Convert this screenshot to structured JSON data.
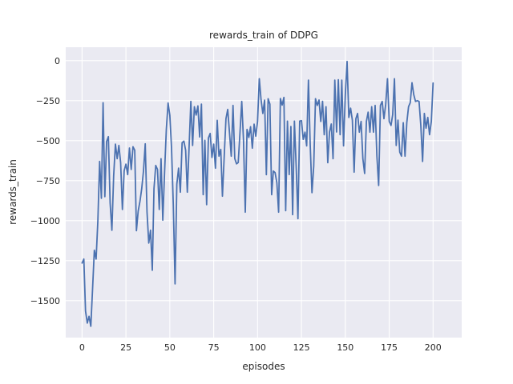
{
  "chart_data": {
    "type": "line",
    "title": "rewards_train of DDPG",
    "xlabel": "episodes",
    "ylabel": "rewards_train",
    "x_ticks": [
      0,
      25,
      50,
      75,
      100,
      125,
      150,
      175,
      200
    ],
    "y_ticks": [
      0,
      -250,
      -500,
      -750,
      -1000,
      -1250,
      -1500
    ],
    "xlim": [
      -9.3,
      216.3
    ],
    "ylim": [
      -1731,
      84
    ],
    "grid": true,
    "legend": "none",
    "style": {
      "axes_background": "#eaeaf2",
      "grid_color": "#ffffff",
      "line_color": "#4c72b0",
      "text_color": "#262626"
    },
    "series": [
      {
        "name": "rewards_train",
        "x_start": 0,
        "x_step": 1,
        "values": [
          -1265,
          -1240,
          -1565,
          -1640,
          -1598,
          -1660,
          -1425,
          -1185,
          -1240,
          -1000,
          -630,
          -860,
          -263,
          -850,
          -505,
          -475,
          -890,
          -1060,
          -720,
          -522,
          -613,
          -530,
          -638,
          -930,
          -688,
          -647,
          -712,
          -546,
          -680,
          -538,
          -560,
          -1063,
          -940,
          -880,
          -800,
          -690,
          -520,
          -945,
          -1140,
          -1060,
          -1310,
          -800,
          -655,
          -680,
          -930,
          -613,
          -997,
          -700,
          -430,
          -265,
          -343,
          -546,
          -900,
          -1395,
          -772,
          -672,
          -822,
          -513,
          -503,
          -560,
          -822,
          -540,
          -255,
          -530,
          -288,
          -340,
          -283,
          -477,
          -272,
          -838,
          -498,
          -900,
          -483,
          -455,
          -605,
          -522,
          -672,
          -373,
          -597,
          -555,
          -847,
          -600,
          -363,
          -305,
          -450,
          -597,
          -280,
          -612,
          -645,
          -637,
          -450,
          -255,
          -500,
          -947,
          -430,
          -480,
          -413,
          -547,
          -397,
          -472,
          -380,
          -113,
          -245,
          -330,
          -247,
          -713,
          -238,
          -272,
          -838,
          -690,
          -700,
          -763,
          -947,
          -237,
          -278,
          -230,
          -938,
          -378,
          -712,
          -412,
          -963,
          -378,
          -662,
          -988,
          -378,
          -375,
          -492,
          -447,
          -533,
          -122,
          -525,
          -825,
          -658,
          -238,
          -280,
          -246,
          -380,
          -254,
          -463,
          -288,
          -638,
          -446,
          -396,
          -613,
          -122,
          -446,
          -119,
          -463,
          -122,
          -533,
          -213,
          -5,
          -355,
          -297,
          -372,
          -697,
          -363,
          -330,
          -447,
          -380,
          -613,
          -705,
          -380,
          -322,
          -447,
          -288,
          -447,
          -280,
          -597,
          -780,
          -280,
          -255,
          -363,
          -272,
          -113,
          -380,
          -405,
          -338,
          -113,
          -530,
          -372,
          -572,
          -597,
          -388,
          -597,
          -388,
          -288,
          -263,
          -138,
          -213,
          -255,
          -250,
          -255,
          -405,
          -630,
          -330,
          -422,
          -355,
          -463,
          -380,
          -140
        ]
      }
    ]
  }
}
